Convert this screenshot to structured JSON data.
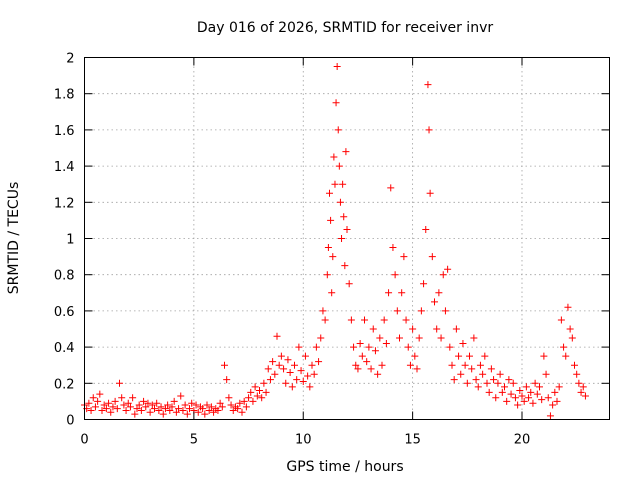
{
  "chart_data": {
    "type": "scatter",
    "title": "Day 016 of 2026, SRMTID for receiver invr",
    "xlabel": "GPS time / hours",
    "ylabel": "SRMTID / TECUs",
    "xlim": [
      0,
      24
    ],
    "ylim": [
      0,
      2
    ],
    "xticks": [
      0,
      5,
      10,
      15,
      20
    ],
    "xtick_labels": [
      "0",
      "5",
      "10",
      "15",
      "20"
    ],
    "yticks": [
      0,
      0.2,
      0.4,
      0.6,
      0.8,
      1,
      1.2,
      1.4,
      1.6,
      1.8,
      2
    ],
    "ytick_labels": [
      "0",
      "0.2",
      "0.4",
      "0.6",
      "0.8",
      "1",
      "1.2",
      "1.4",
      "1.6",
      "1.8",
      "2"
    ],
    "grid": true,
    "marker": "+",
    "color": "#ff0000",
    "series": [
      {
        "name": "SRMTID",
        "points": [
          [
            0.0,
            0.08
          ],
          [
            0.1,
            0.06
          ],
          [
            0.2,
            0.09
          ],
          [
            0.3,
            0.05
          ],
          [
            0.4,
            0.12
          ],
          [
            0.5,
            0.07
          ],
          [
            0.6,
            0.1
          ],
          [
            0.7,
            0.14
          ],
          [
            0.8,
            0.05
          ],
          [
            0.9,
            0.08
          ],
          [
            1.0,
            0.06
          ],
          [
            1.1,
            0.09
          ],
          [
            1.2,
            0.04
          ],
          [
            1.3,
            0.07
          ],
          [
            1.4,
            0.1
          ],
          [
            1.5,
            0.06
          ],
          [
            1.6,
            0.2
          ],
          [
            1.7,
            0.12
          ],
          [
            1.8,
            0.08
          ],
          [
            1.9,
            0.05
          ],
          [
            2.0,
            0.09
          ],
          [
            2.1,
            0.07
          ],
          [
            2.2,
            0.12
          ],
          [
            2.3,
            0.03
          ],
          [
            2.4,
            0.06
          ],
          [
            2.5,
            0.08
          ],
          [
            2.6,
            0.05
          ],
          [
            2.7,
            0.1
          ],
          [
            2.8,
            0.07
          ],
          [
            2.9,
            0.09
          ],
          [
            3.0,
            0.04
          ],
          [
            3.1,
            0.08
          ],
          [
            3.2,
            0.06
          ],
          [
            3.3,
            0.09
          ],
          [
            3.4,
            0.05
          ],
          [
            3.5,
            0.07
          ],
          [
            3.6,
            0.03
          ],
          [
            3.7,
            0.06
          ],
          [
            3.8,
            0.08
          ],
          [
            3.9,
            0.05
          ],
          [
            4.0,
            0.07
          ],
          [
            4.1,
            0.1
          ],
          [
            4.2,
            0.04
          ],
          [
            4.3,
            0.06
          ],
          [
            4.4,
            0.13
          ],
          [
            4.5,
            0.05
          ],
          [
            4.6,
            0.08
          ],
          [
            4.7,
            0.03
          ],
          [
            4.8,
            0.06
          ],
          [
            4.9,
            0.09
          ],
          [
            5.0,
            0.05
          ],
          [
            5.1,
            0.08
          ],
          [
            5.2,
            0.04
          ],
          [
            5.3,
            0.07
          ],
          [
            5.4,
            0.06
          ],
          [
            5.5,
            0.03
          ],
          [
            5.6,
            0.08
          ],
          [
            5.7,
            0.05
          ],
          [
            5.8,
            0.07
          ],
          [
            5.9,
            0.04
          ],
          [
            6.0,
            0.06
          ],
          [
            6.1,
            0.05
          ],
          [
            6.2,
            0.09
          ],
          [
            6.3,
            0.07
          ],
          [
            6.4,
            0.3
          ],
          [
            6.5,
            0.22
          ],
          [
            6.6,
            0.12
          ],
          [
            6.7,
            0.08
          ],
          [
            6.8,
            0.05
          ],
          [
            6.9,
            0.07
          ],
          [
            7.0,
            0.06
          ],
          [
            7.1,
            0.09
          ],
          [
            7.2,
            0.04
          ],
          [
            7.3,
            0.1
          ],
          [
            7.4,
            0.07
          ],
          [
            7.5,
            0.12
          ],
          [
            7.6,
            0.15
          ],
          [
            7.7,
            0.1
          ],
          [
            7.8,
            0.18
          ],
          [
            7.9,
            0.13
          ],
          [
            8.0,
            0.16
          ],
          [
            8.1,
            0.12
          ],
          [
            8.2,
            0.2
          ],
          [
            8.3,
            0.15
          ],
          [
            8.4,
            0.28
          ],
          [
            8.5,
            0.22
          ],
          [
            8.6,
            0.32
          ],
          [
            8.7,
            0.25
          ],
          [
            8.8,
            0.46
          ],
          [
            8.9,
            0.3
          ],
          [
            9.0,
            0.35
          ],
          [
            9.1,
            0.28
          ],
          [
            9.2,
            0.2
          ],
          [
            9.3,
            0.33
          ],
          [
            9.4,
            0.26
          ],
          [
            9.5,
            0.18
          ],
          [
            9.6,
            0.3
          ],
          [
            9.7,
            0.22
          ],
          [
            9.8,
            0.4
          ],
          [
            9.9,
            0.27
          ],
          [
            10.0,
            0.21
          ],
          [
            10.1,
            0.35
          ],
          [
            10.2,
            0.24
          ],
          [
            10.3,
            0.18
          ],
          [
            10.4,
            0.3
          ],
          [
            10.5,
            0.25
          ],
          [
            10.6,
            0.4
          ],
          [
            10.7,
            0.32
          ],
          [
            10.8,
            0.45
          ],
          [
            10.9,
            0.6
          ],
          [
            11.0,
            0.55
          ],
          [
            11.1,
            0.8
          ],
          [
            11.15,
            0.95
          ],
          [
            11.2,
            1.25
          ],
          [
            11.25,
            1.1
          ],
          [
            11.3,
            0.7
          ],
          [
            11.35,
            0.9
          ],
          [
            11.4,
            1.45
          ],
          [
            11.45,
            1.3
          ],
          [
            11.5,
            1.75
          ],
          [
            11.55,
            1.95
          ],
          [
            11.6,
            1.6
          ],
          [
            11.65,
            1.4
          ],
          [
            11.7,
            1.2
          ],
          [
            11.75,
            1.0
          ],
          [
            11.8,
            1.3
          ],
          [
            11.85,
            1.12
          ],
          [
            11.9,
            0.85
          ],
          [
            11.95,
            1.48
          ],
          [
            12.0,
            1.05
          ],
          [
            12.1,
            0.75
          ],
          [
            12.2,
            0.55
          ],
          [
            12.3,
            0.4
          ],
          [
            12.4,
            0.3
          ],
          [
            12.5,
            0.28
          ],
          [
            12.6,
            0.42
          ],
          [
            12.7,
            0.35
          ],
          [
            12.8,
            0.55
          ],
          [
            12.9,
            0.32
          ],
          [
            13.0,
            0.4
          ],
          [
            13.1,
            0.28
          ],
          [
            13.2,
            0.5
          ],
          [
            13.3,
            0.38
          ],
          [
            13.4,
            0.25
          ],
          [
            13.5,
            0.45
          ],
          [
            13.6,
            0.3
          ],
          [
            13.7,
            0.55
          ],
          [
            13.8,
            0.42
          ],
          [
            13.9,
            0.7
          ],
          [
            14.0,
            1.28
          ],
          [
            14.1,
            0.95
          ],
          [
            14.2,
            0.8
          ],
          [
            14.3,
            0.6
          ],
          [
            14.4,
            0.45
          ],
          [
            14.5,
            0.7
          ],
          [
            14.6,
            0.9
          ],
          [
            14.7,
            0.55
          ],
          [
            14.8,
            0.4
          ],
          [
            14.9,
            0.3
          ],
          [
            15.0,
            0.5
          ],
          [
            15.1,
            0.35
          ],
          [
            15.2,
            0.28
          ],
          [
            15.3,
            0.45
          ],
          [
            15.4,
            0.6
          ],
          [
            15.5,
            0.75
          ],
          [
            15.6,
            1.05
          ],
          [
            15.7,
            1.85
          ],
          [
            15.75,
            1.6
          ],
          [
            15.8,
            1.25
          ],
          [
            15.9,
            0.9
          ],
          [
            16.0,
            0.65
          ],
          [
            16.1,
            0.5
          ],
          [
            16.2,
            0.7
          ],
          [
            16.3,
            0.45
          ],
          [
            16.4,
            0.8
          ],
          [
            16.5,
            0.6
          ],
          [
            16.6,
            0.83
          ],
          [
            16.7,
            0.4
          ],
          [
            16.8,
            0.3
          ],
          [
            16.9,
            0.22
          ],
          [
            17.0,
            0.5
          ],
          [
            17.1,
            0.35
          ],
          [
            17.2,
            0.25
          ],
          [
            17.3,
            0.42
          ],
          [
            17.4,
            0.3
          ],
          [
            17.5,
            0.2
          ],
          [
            17.6,
            0.35
          ],
          [
            17.7,
            0.28
          ],
          [
            17.8,
            0.45
          ],
          [
            17.9,
            0.22
          ],
          [
            18.0,
            0.18
          ],
          [
            18.1,
            0.3
          ],
          [
            18.2,
            0.25
          ],
          [
            18.3,
            0.35
          ],
          [
            18.4,
            0.2
          ],
          [
            18.5,
            0.15
          ],
          [
            18.6,
            0.28
          ],
          [
            18.7,
            0.22
          ],
          [
            18.8,
            0.12
          ],
          [
            18.9,
            0.2
          ],
          [
            19.0,
            0.25
          ],
          [
            19.1,
            0.15
          ],
          [
            19.2,
            0.18
          ],
          [
            19.3,
            0.1
          ],
          [
            19.4,
            0.22
          ],
          [
            19.5,
            0.14
          ],
          [
            19.6,
            0.2
          ],
          [
            19.7,
            0.12
          ],
          [
            19.8,
            0.08
          ],
          [
            19.9,
            0.16
          ],
          [
            20.0,
            0.13
          ],
          [
            20.1,
            0.1
          ],
          [
            20.2,
            0.18
          ],
          [
            20.3,
            0.12
          ],
          [
            20.4,
            0.15
          ],
          [
            20.5,
            0.09
          ],
          [
            20.6,
            0.2
          ],
          [
            20.7,
            0.14
          ],
          [
            20.8,
            0.18
          ],
          [
            20.9,
            0.11
          ],
          [
            21.0,
            0.35
          ],
          [
            21.1,
            0.25
          ],
          [
            21.2,
            0.12
          ],
          [
            21.3,
            0.02
          ],
          [
            21.4,
            0.08
          ],
          [
            21.5,
            0.15
          ],
          [
            21.6,
            0.1
          ],
          [
            21.7,
            0.18
          ],
          [
            21.8,
            0.55
          ],
          [
            21.9,
            0.4
          ],
          [
            22.0,
            0.35
          ],
          [
            22.1,
            0.62
          ],
          [
            22.2,
            0.5
          ],
          [
            22.3,
            0.45
          ],
          [
            22.4,
            0.3
          ],
          [
            22.5,
            0.25
          ],
          [
            22.6,
            0.2
          ],
          [
            22.7,
            0.15
          ],
          [
            22.8,
            0.18
          ],
          [
            22.9,
            0.13
          ]
        ]
      }
    ]
  }
}
